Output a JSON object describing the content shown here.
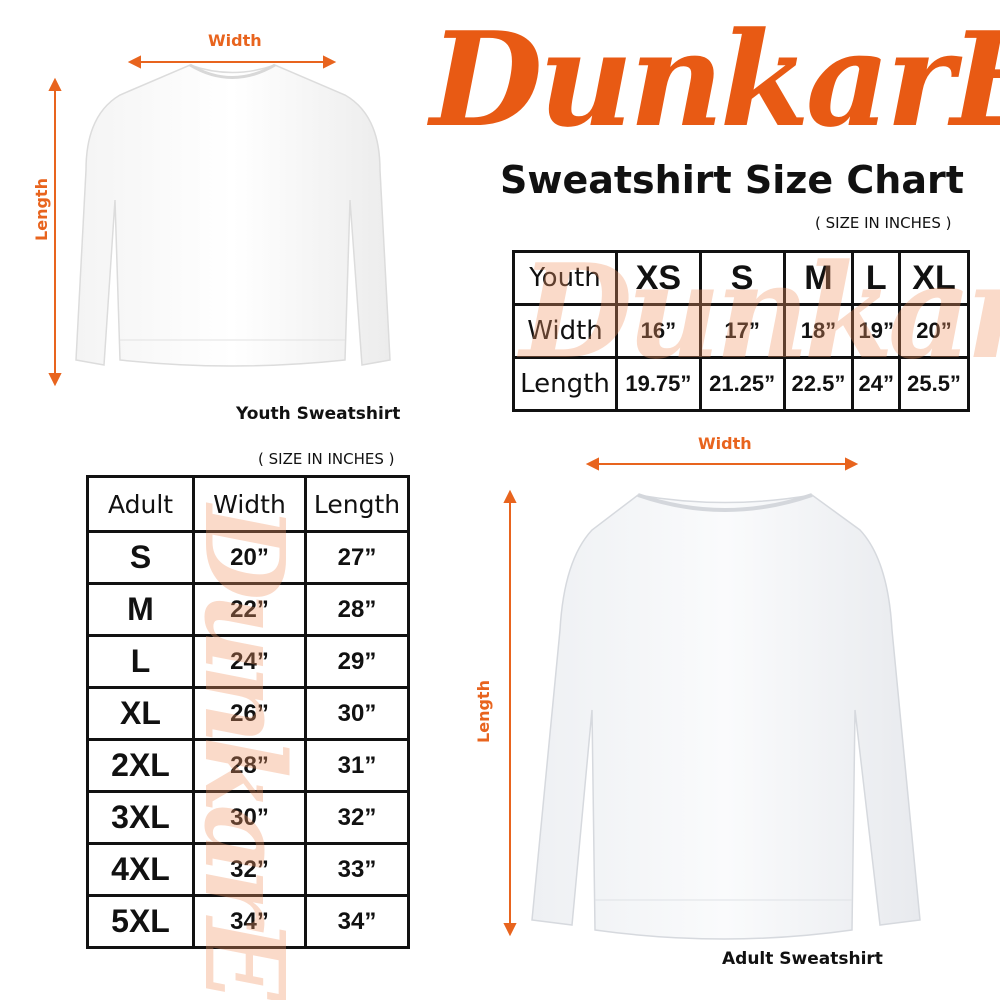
{
  "brand": {
    "logo_text": "DunkarE",
    "color": "#e85a14"
  },
  "title": "Sweatshirt Size Chart",
  "youth": {
    "units": "( SIZE IN INCHES )",
    "caption": "Youth Sweatshirt",
    "width_label": "Width",
    "length_label": "Length",
    "table": {
      "header": [
        "Youth",
        "XS",
        "S",
        "M",
        "L",
        "XL"
      ],
      "rows": [
        [
          "Width",
          "16”",
          "17”",
          "18”",
          "19”",
          "20”"
        ],
        [
          "Length",
          "19.75”",
          "21.25”",
          "22.5”",
          "24”",
          "25.5”"
        ]
      ]
    }
  },
  "adult": {
    "units": "( SIZE IN INCHES )",
    "caption": "Adult Sweatshirt",
    "width_label": "Width",
    "length_label": "Length",
    "table": {
      "header": [
        "Adult",
        "Width",
        "Length"
      ],
      "rows": [
        [
          "S",
          "20”",
          "27”"
        ],
        [
          "M",
          "22”",
          "28”"
        ],
        [
          "L",
          "24”",
          "29”"
        ],
        [
          "XL",
          "26”",
          "30”"
        ],
        [
          "2XL",
          "28”",
          "31”"
        ],
        [
          "3XL",
          "30”",
          "32”"
        ],
        [
          "4XL",
          "32”",
          "33”"
        ],
        [
          "5XL",
          "34”",
          "34”"
        ]
      ]
    }
  }
}
